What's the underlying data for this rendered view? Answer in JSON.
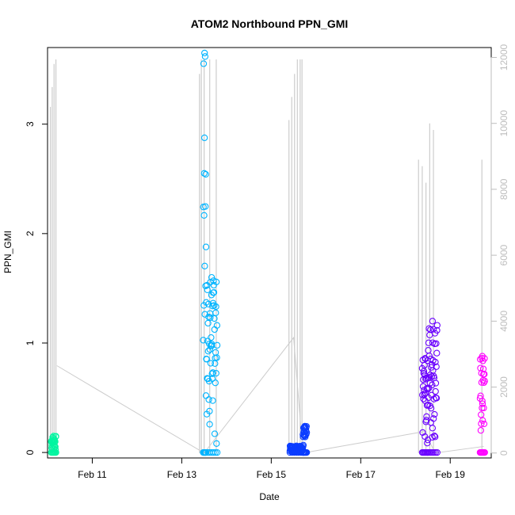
{
  "chart_data": {
    "type": "scatter",
    "title": "ATOM2 Northbound PPN_GMI",
    "xlabel": "Date",
    "ylabel": "PPN_GMI",
    "x_unit": "date",
    "xlim": [
      "Feb 10 00:00",
      "Feb 19 22:00"
    ],
    "x_ticks": [
      {
        "date": "Feb 11 00:00",
        "label": "Feb 11"
      },
      {
        "date": "Feb 13 00:00",
        "label": "Feb 13"
      },
      {
        "date": "Feb 15 00:00",
        "label": "Feb 15"
      },
      {
        "date": "Feb 17 00:00",
        "label": "Feb 17"
      },
      {
        "date": "Feb 19 00:00",
        "label": "Feb 19"
      }
    ],
    "ylim": [
      -0.05,
      3.7
    ],
    "y_ticks": [
      0,
      1,
      2,
      3
    ],
    "secondary_axis": {
      "side": "right",
      "color": "#bdbdbd",
      "lim": [
        -150,
        12300
      ],
      "ticks": [
        0,
        2000,
        4000,
        6000,
        8000,
        10000,
        12000
      ]
    },
    "grid": false,
    "legend": "none",
    "series": [
      {
        "color": "#00f5a0",
        "style": "points",
        "segments": [
          {
            "x_start": "Feb 10 02:00",
            "x_end": "Feb 10 04:30",
            "y_min": 0.0,
            "y_max": 0.15
          }
        ]
      },
      {
        "color": "#00b4ff",
        "style": "points",
        "segments": [
          {
            "x_start": "Feb 13 11:30",
            "x_end": "Feb 13 13:00",
            "y_min": 0.0,
            "y_max": 3.65
          },
          {
            "x_start": "Feb 13 13:00",
            "x_end": "Feb 13 19:00",
            "y_min": 0.0,
            "y_max": 1.6
          }
        ]
      },
      {
        "color": "#0a3cff",
        "style": "points",
        "segments": [
          {
            "x_start": "Feb 15 10:00",
            "x_end": "Feb 15 17:00",
            "y_min": 0.0,
            "y_max": 0.06
          },
          {
            "x_start": "Feb 15 17:00",
            "x_end": "Feb 15 19:00",
            "y_min": 0.0,
            "y_max": 0.24
          }
        ]
      },
      {
        "color": "#6a00ff",
        "style": "points",
        "segments": [
          {
            "x_start": "Feb 18 09:00",
            "x_end": "Feb 18 12:00",
            "y_min": 0.0,
            "y_max": 0.86
          },
          {
            "x_start": "Feb 18 12:00",
            "x_end": "Feb 18 17:00",
            "y_min": 0.0,
            "y_max": 1.2
          }
        ]
      },
      {
        "color": "#ff00ff",
        "style": "points",
        "segments": [
          {
            "x_start": "Feb 19 16:00",
            "x_end": "Feb 19 18:30",
            "y_min": 0.0,
            "y_max": 0.88
          }
        ]
      }
    ],
    "secondary_series": {
      "color": "#cccccc",
      "style": "line",
      "connectors": [
        [
          "Feb 10 05:00",
          2650
        ],
        [
          "Feb 13 12:00",
          0
        ],
        [
          "Feb 15 12:00",
          3500
        ],
        [
          "Feb 15 17:00",
          0
        ],
        [
          "Feb 18 10:00",
          650
        ],
        [
          "Feb 18 16:00",
          0
        ],
        [
          "Feb 19 18:00",
          200
        ]
      ],
      "spikes": [
        [
          "Feb 10 01:30",
          10500
        ],
        [
          "Feb 10 02:30",
          11100
        ],
        [
          "Feb 10 03:30",
          11800
        ],
        [
          "Feb 10 04:30",
          12600
        ],
        [
          "Feb 13 09:30",
          11500
        ],
        [
          "Feb 13 10:30",
          12000
        ],
        [
          "Feb 13 12:00",
          13000
        ],
        [
          "Feb 13 15:00",
          13200
        ],
        [
          "Feb 13 18:30",
          13200
        ],
        [
          "Feb 15 09:30",
          10100
        ],
        [
          "Feb 15 11:00",
          10800
        ],
        [
          "Feb 15 12:30",
          11500
        ],
        [
          "Feb 15 14:00",
          12300
        ],
        [
          "Feb 15 15:30",
          12200
        ],
        [
          "Feb 15 16:30",
          12100
        ],
        [
          "Feb 18 07:00",
          8900
        ],
        [
          "Feb 18 09:00",
          8700
        ],
        [
          "Feb 18 11:00",
          8200
        ],
        [
          "Feb 18 13:00",
          10000
        ],
        [
          "Feb 18 15:00",
          9800
        ],
        [
          "Feb 19 17:00",
          8900
        ]
      ]
    }
  }
}
